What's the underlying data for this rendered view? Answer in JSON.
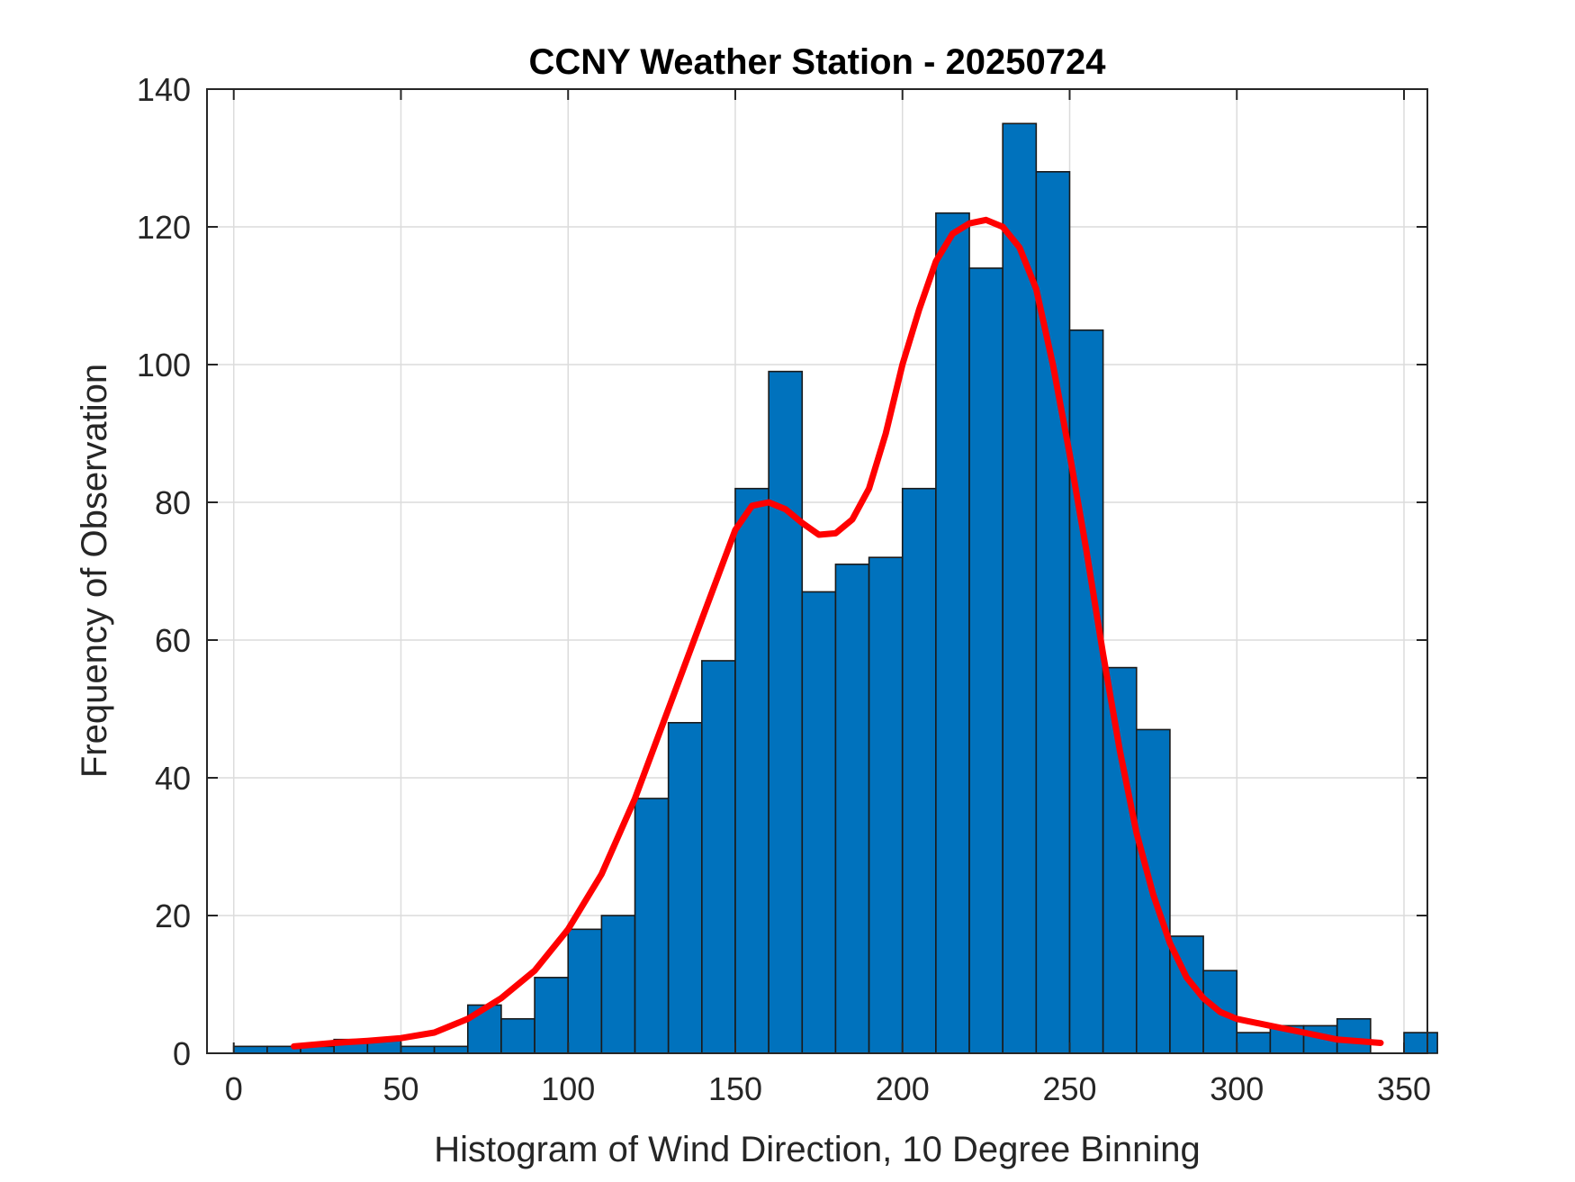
{
  "chart_data": {
    "type": "bar",
    "title": "CCNY Weather Station - 20250724",
    "xlabel": "Histogram of Wind Direction, 10 Degree Binning",
    "ylabel": "Frequency of Observation",
    "xlim": [
      -8,
      357
    ],
    "ylim": [
      0,
      140
    ],
    "xticks": [
      0,
      50,
      100,
      150,
      200,
      250,
      300,
      350
    ],
    "yticks": [
      0,
      20,
      40,
      60,
      80,
      100,
      120,
      140
    ],
    "grid": true,
    "bin_width": 10,
    "bin_edges": [
      0,
      10,
      20,
      30,
      40,
      50,
      60,
      70,
      80,
      90,
      100,
      110,
      120,
      130,
      140,
      150,
      160,
      170,
      180,
      190,
      200,
      210,
      220,
      230,
      240,
      250,
      260,
      270,
      280,
      290,
      300,
      310,
      320,
      330,
      340,
      350
    ],
    "values": [
      1,
      1,
      1,
      2,
      2,
      1,
      1,
      7,
      5,
      11,
      18,
      20,
      37,
      48,
      57,
      82,
      99,
      67,
      71,
      72,
      82,
      122,
      114,
      135,
      128,
      105,
      56,
      47,
      17,
      12,
      3,
      4,
      4,
      5,
      0,
      3
    ],
    "bar_color": "#0072BD",
    "fit_curve": {
      "color": "#FF0000",
      "x": [
        18,
        30,
        40,
        50,
        60,
        70,
        80,
        90,
        100,
        110,
        120,
        130,
        140,
        150,
        155,
        160,
        165,
        170,
        175,
        180,
        185,
        190,
        195,
        200,
        205,
        210,
        215,
        220,
        225,
        230,
        235,
        240,
        245,
        250,
        255,
        260,
        265,
        270,
        275,
        280,
        285,
        290,
        295,
        300,
        310,
        320,
        330,
        343
      ],
      "y": [
        1,
        1.5,
        1.8,
        2.2,
        3,
        5,
        8,
        12,
        18,
        26,
        37,
        50,
        63,
        76,
        79.5,
        80,
        79,
        77,
        75.3,
        75.5,
        77.5,
        82,
        90,
        100,
        108,
        115,
        119,
        120.5,
        121,
        120,
        117,
        111,
        100,
        87,
        73,
        58,
        44,
        32,
        23,
        16,
        11,
        8,
        6,
        5,
        4,
        3,
        2,
        1.5
      ]
    }
  }
}
